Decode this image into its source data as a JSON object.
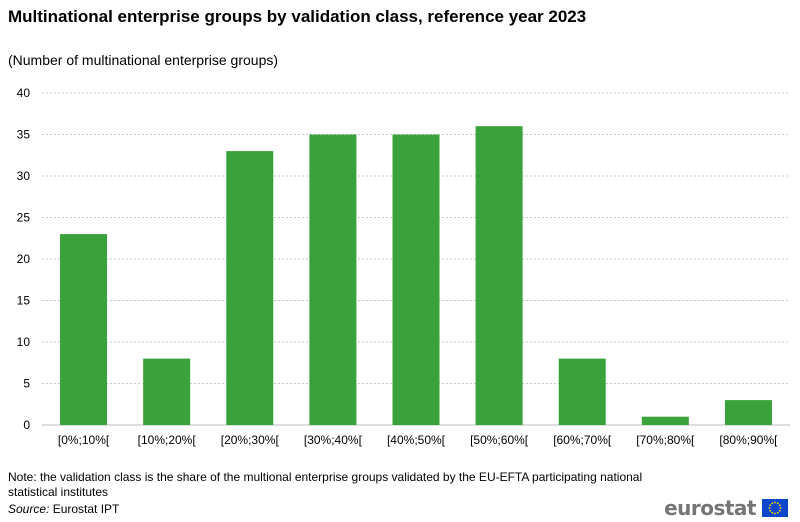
{
  "chart_data": {
    "type": "bar",
    "title": "Multinational enterprise groups by validation class, reference year 2023",
    "subtitle": "(Number  of multinational  enterprise groups)",
    "categories": [
      "[0%;10%[",
      "[10%;20%[",
      "[20%;30%[",
      "[30%;40%[",
      "[40%;50%[",
      "[50%;60%[",
      "[60%;70%[",
      "[70%;80%[",
      "[80%;90%["
    ],
    "values": [
      23,
      8,
      33,
      35,
      35,
      36,
      8,
      1,
      3
    ],
    "ylim": [
      0,
      40
    ],
    "yticks": [
      0,
      5,
      10,
      15,
      20,
      25,
      30,
      35,
      40
    ],
    "grid": "horizontal dashed",
    "bar_color": "#3aa23a",
    "xlabel": "",
    "ylabel": ""
  },
  "footer": {
    "note": "Note: the validation class is the share of the multional enterprise groups validated by the EU-EFTA participating national statistical institutes",
    "source_label": "Source:",
    "source_text": " Eurostat IPT"
  },
  "logo": {
    "text": "eurostat",
    "icon": "eu-flag-icon",
    "flag_color": "#0e47cb",
    "star_color": "#ffdd00"
  }
}
